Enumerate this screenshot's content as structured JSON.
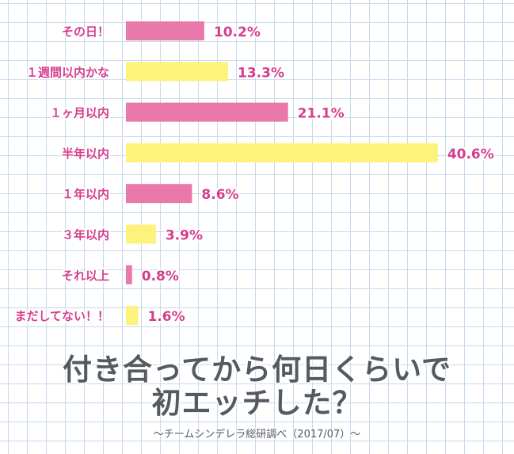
{
  "colors": {
    "pink": "#ea79ab",
    "yellow": "#fcf27c",
    "label": "#d63d8e",
    "title": "#555a60",
    "grid": "#c7d9ee"
  },
  "chart_data": {
    "type": "bar",
    "orientation": "horizontal",
    "unit": "%",
    "categories": [
      "その日！",
      "１週間以内かな",
      "１ヶ月以内",
      "半年以内",
      "１年以内",
      "３年以内",
      "それ以上",
      "まだしてない！！"
    ],
    "values": [
      10.2,
      13.3,
      21.1,
      40.6,
      8.6,
      3.9,
      0.8,
      1.6
    ],
    "value_labels": [
      "10.2%",
      "13.3%",
      "21.1%",
      "40.6%",
      "8.6%",
      "3.9%",
      "0.8%",
      "1.6%"
    ],
    "bar_colors": [
      "pink",
      "yellow",
      "pink",
      "yellow",
      "pink",
      "yellow",
      "pink",
      "yellow"
    ],
    "grid": true,
    "title_lines": [
      "付き合ってから何日くらいで",
      "初エッチした？"
    ],
    "source": "〜チームシンデレラ総研調べ（2017/07）〜"
  }
}
